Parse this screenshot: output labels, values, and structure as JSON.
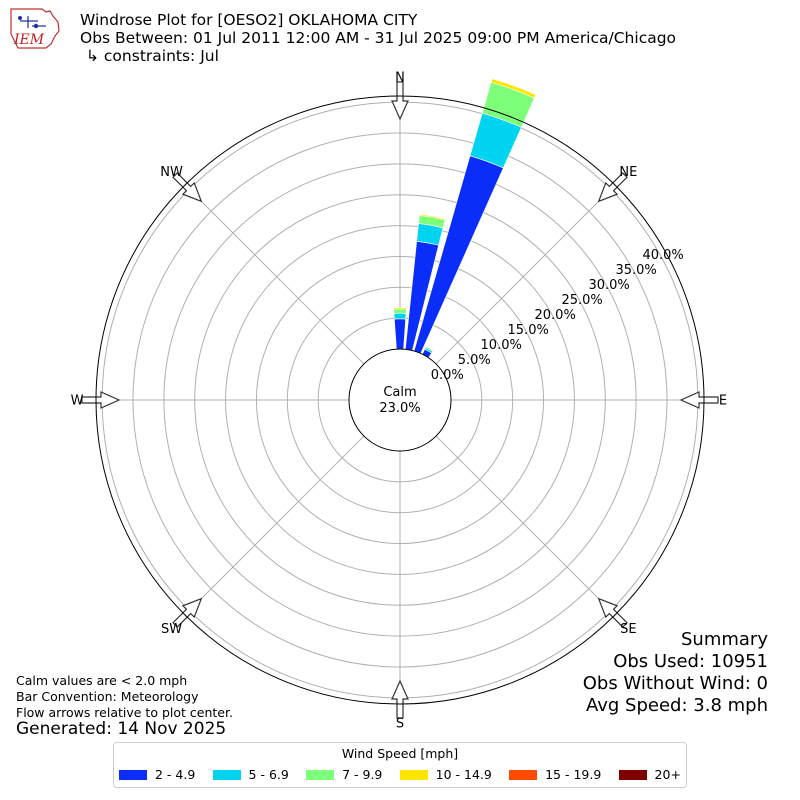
{
  "header": {
    "logo_text": "IEM",
    "title": "Windrose Plot for [OESO2] OKLAHOMA CITY",
    "obs_between": "Obs Between: 01 Jul 2011 12:00 AM - 31 Jul 2025 09:00 PM America/Chicago",
    "constraints": "↳ constraints: Jul"
  },
  "notes": {
    "calm_def": "Calm values are < 2.0 mph",
    "bar_convention": "Bar Convention: Meteorology",
    "flow_arrows": "Flow arrows relative to plot center.",
    "generated": "Generated: 14 Nov 2025"
  },
  "summary": {
    "title": "Summary",
    "obs_used": "Obs Used: 10951",
    "obs_without_wind": "Obs Without Wind: 0",
    "avg_speed": "Avg Speed: 3.8 mph"
  },
  "colors": {
    "bins": [
      "#0a2dfa",
      "#00d4f0",
      "#7dff7a",
      "#ffe600",
      "#ff4a00",
      "#800000"
    ],
    "grid": "#b0b0b0"
  },
  "chart_data": {
    "type": "windrose",
    "calm_label": "Calm",
    "calm_pct": 23.0,
    "calm_pct_label": "23.0%",
    "r_ticks": [
      0,
      5,
      10,
      15,
      20,
      25,
      30,
      35,
      40
    ],
    "r_tick_labels": [
      "0.0%",
      "5.0%",
      "10.0%",
      "15.0%",
      "20.0%",
      "25.0%",
      "30.0%",
      "35.0%",
      "40.0%"
    ],
    "r_max": 41,
    "directions": [
      {
        "label": "N",
        "deg": 0
      },
      {
        "label": "NE",
        "deg": 45
      },
      {
        "label": "E",
        "deg": 90
      },
      {
        "label": "SE",
        "deg": 135
      },
      {
        "label": "S",
        "deg": 180
      },
      {
        "label": "SW",
        "deg": 225
      },
      {
        "label": "W",
        "deg": 270
      },
      {
        "label": "NW",
        "deg": 315
      }
    ],
    "legend_title": "Wind Speed [mph]",
    "speed_bins": [
      "2 - 4.9",
      "5 - 6.9",
      "7 - 9.9",
      "10 - 14.9",
      "15 - 19.9",
      "20+"
    ],
    "sectors": [
      {
        "deg": 0,
        "values": [
          4.9,
          0.9,
          0.7,
          0.2,
          0,
          0
        ]
      },
      {
        "deg": 10,
        "values": [
          17.6,
          2.9,
          1.3,
          0.2,
          0,
          0
        ]
      },
      {
        "deg": 20,
        "values": [
          32.9,
          7.2,
          5.2,
          0.6,
          0,
          0
        ]
      },
      {
        "deg": 30,
        "values": [
          0.9,
          0.3,
          0.2,
          0.05,
          0,
          0
        ]
      }
    ]
  }
}
